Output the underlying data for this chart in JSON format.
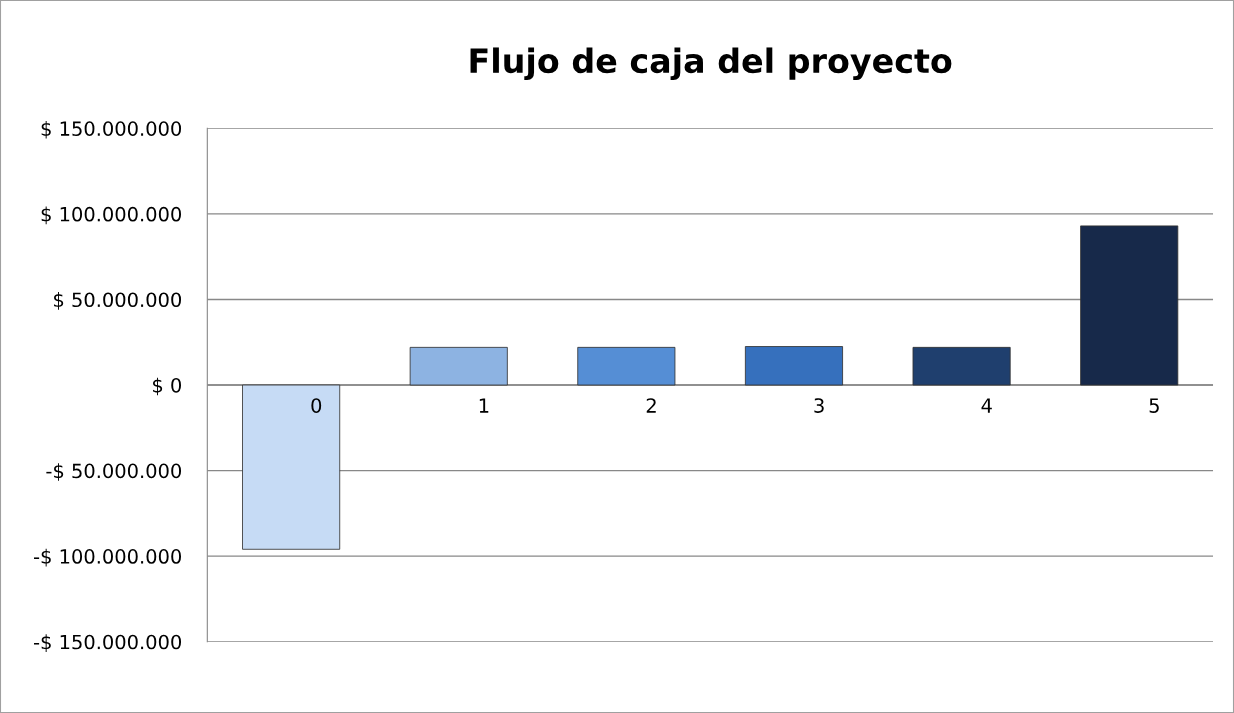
{
  "chart_data": {
    "type": "bar",
    "title": "Flujo de caja del proyecto",
    "categories": [
      "0",
      "1",
      "2",
      "3",
      "4",
      "5"
    ],
    "values": [
      -96000000,
      22000000,
      22000000,
      22500000,
      22000000,
      93000000
    ],
    "colors": [
      "#c6dbf5",
      "#8db3e2",
      "#558ed5",
      "#3670bd",
      "#1f3f6e",
      "#17294a"
    ],
    "ylim": [
      -150000000,
      150000000
    ],
    "yticks": [
      {
        "value": -150000000,
        "label": "-$ 150.000.000"
      },
      {
        "value": -100000000,
        "label": "-$ 100.000.000"
      },
      {
        "value": -50000000,
        "label": "-$ 50.000.000"
      },
      {
        "value": 0,
        "label": "$ 0"
      },
      {
        "value": 50000000,
        "label": "$ 50.000.000"
      },
      {
        "value": 100000000,
        "label": "$ 100.000.000"
      },
      {
        "value": 150000000,
        "label": "$ 150.000.000"
      }
    ],
    "grid": "y"
  }
}
